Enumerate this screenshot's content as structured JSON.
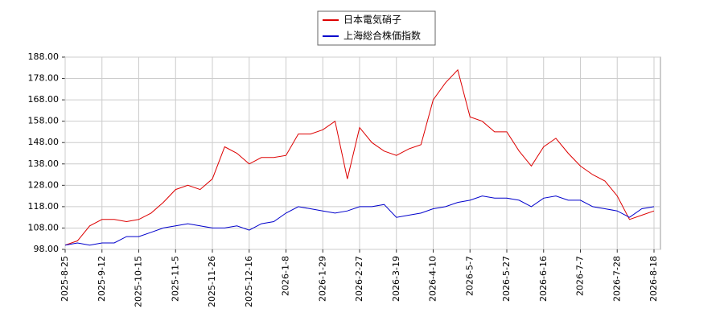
{
  "chart_data": {
    "type": "line",
    "categories": [
      "2025-8-25",
      null,
      null,
      "2025-9-12",
      null,
      null,
      "2025-10-15",
      null,
      null,
      "2025-11-5",
      null,
      null,
      "2025-11-26",
      null,
      null,
      "2025-12-16",
      null,
      null,
      "2026-1-8",
      null,
      null,
      "2026-1-29",
      null,
      null,
      "2026-2-27",
      null,
      null,
      "2026-3-19",
      null,
      null,
      "2026-4-10",
      null,
      null,
      "2026-5-7",
      null,
      null,
      "2026-5-27",
      null,
      null,
      "2026-6-16",
      null,
      null,
      "2026-7-7",
      null,
      null,
      "2026-7-28",
      null,
      null,
      "2026-8-18"
    ],
    "series": [
      {
        "name": "日本電気硝子",
        "color": "#dd0000",
        "values": [
          100,
          102,
          109,
          112,
          112,
          111,
          112,
          115,
          120,
          126,
          128,
          126,
          131,
          146,
          143,
          138,
          141,
          141,
          142,
          152,
          152,
          154,
          158,
          131,
          155,
          148,
          144,
          142,
          145,
          147,
          168,
          176,
          182,
          160,
          158,
          153,
          153,
          144,
          137,
          146,
          150,
          143,
          137,
          133,
          130,
          123,
          112,
          114,
          116
        ]
      },
      {
        "name": "上海総合株価指数",
        "color": "#0000cc",
        "values": [
          100,
          101,
          100,
          101,
          101,
          104,
          104,
          106,
          108,
          109,
          110,
          109,
          108,
          108,
          109,
          107,
          110,
          111,
          115,
          118,
          117,
          116,
          115,
          116,
          118,
          118,
          119,
          113,
          114,
          115,
          117,
          118,
          120,
          121,
          123,
          122,
          122,
          121,
          118,
          122,
          123,
          121,
          121,
          118,
          117,
          116,
          113,
          117,
          118
        ]
      }
    ],
    "ylim": [
      98,
      188
    ],
    "yticks": [
      {
        "value": 98,
        "label": "98.00"
      },
      {
        "value": 108,
        "label": "108.00"
      },
      {
        "value": 118,
        "label": "118.00"
      },
      {
        "value": 128,
        "label": "128.00"
      },
      {
        "value": 138,
        "label": "138.00"
      },
      {
        "value": 148,
        "label": "148.00"
      },
      {
        "value": 158,
        "label": "158.00"
      },
      {
        "value": 168,
        "label": "168.00"
      },
      {
        "value": 178,
        "label": "178.00"
      },
      {
        "value": 188,
        "label": "188.00"
      }
    ],
    "grid": true,
    "legend": "top"
  }
}
